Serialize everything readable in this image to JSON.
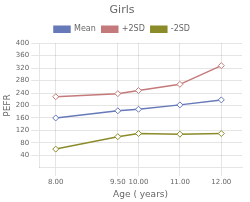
{
  "chart_data": {
    "type": "line",
    "title": "Girls",
    "x_label": "Age ( years)",
    "y_label": "PEFR",
    "x": [
      8.0,
      9.5,
      10.0,
      11.0,
      12.0
    ],
    "series": [
      {
        "name": "Mean",
        "color": "#6679b8",
        "marker": "diamond",
        "values": [
          160,
          183,
          188,
          202,
          218
        ]
      },
      {
        "name": "+2SD",
        "color": "#c47a7a",
        "marker": "diamond",
        "values": [
          228,
          238,
          248,
          268,
          328
        ]
      },
      {
        "name": "-2SD",
        "color": "#8b8b2a",
        "marker": "diamond",
        "values": [
          60,
          100,
          110,
          108,
          110
        ]
      }
    ],
    "xlim": [
      7.6,
      12.5
    ],
    "xticks": [
      {
        "value": 8.0,
        "label": "8.00"
      },
      {
        "value": 9.5,
        "label": "9.50"
      },
      {
        "value": 10.0,
        "label": "10.00"
      },
      {
        "value": 11.0,
        "label": "11.00"
      },
      {
        "value": 12.0,
        "label": "12.00"
      }
    ],
    "ylim": [
      0,
      400
    ],
    "yticks": [
      40,
      80,
      120,
      160,
      200,
      240,
      280,
      320,
      360,
      400
    ],
    "grid": true,
    "legend": "top"
  }
}
